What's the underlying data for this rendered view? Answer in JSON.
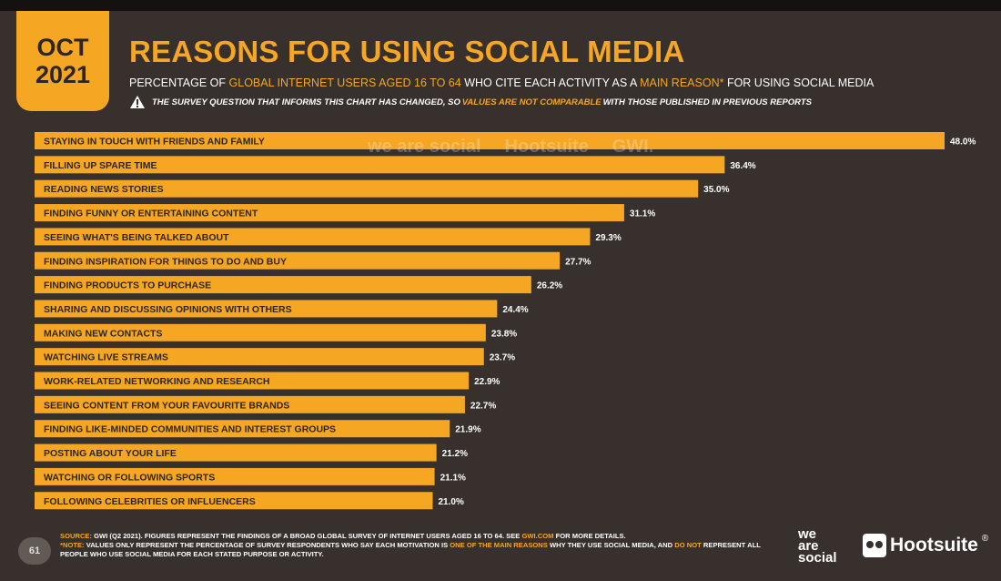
{
  "badge": {
    "month": "OCT",
    "year": "2021"
  },
  "title": "REASONS FOR USING SOCIAL MEDIA",
  "subtitle": {
    "part1": "PERCENTAGE OF ",
    "highlight1": "GLOBAL INTERNET USERS AGED 16 TO 64",
    "part2": " WHO CITE EACH ACTIVITY AS A ",
    "highlight2": "MAIN REASON*",
    "part3": " FOR USING SOCIAL MEDIA"
  },
  "warning": {
    "part1": "THE SURVEY QUESTION THAT INFORMS THIS CHART HAS CHANGED, SO ",
    "highlight": "VALUES ARE NOT COMPARABLE",
    "part2": " WITH THOSE PUBLISHED IN PREVIOUS REPORTS"
  },
  "watermark": {
    "was": "we are social",
    "hootsuite": "Hootsuite",
    "gwi": "GWI."
  },
  "chart_data": {
    "type": "bar",
    "orientation": "horizontal",
    "categories": [
      "STAYING IN TOUCH WITH FRIENDS AND FAMILY",
      "FILLING UP SPARE TIME",
      "READING NEWS STORIES",
      "FINDING FUNNY OR ENTERTAINING CONTENT",
      "SEEING WHAT'S BEING TALKED ABOUT",
      "FINDING INSPIRATION FOR THINGS TO DO AND BUY",
      "FINDING PRODUCTS TO PURCHASE",
      "SHARING AND DISCUSSING OPINIONS WITH OTHERS",
      "MAKING NEW CONTACTS",
      "WATCHING LIVE STREAMS",
      "WORK-RELATED NETWORKING AND RESEARCH",
      "SEEING CONTENT FROM YOUR FAVOURITE BRANDS",
      "FINDING LIKE-MINDED COMMUNITIES AND INTEREST GROUPS",
      "POSTING ABOUT YOUR LIFE",
      "WATCHING OR FOLLOWING SPORTS",
      "FOLLOWING CELEBRITIES OR INFLUENCERS"
    ],
    "values": [
      48.0,
      36.4,
      35.0,
      31.1,
      29.3,
      27.7,
      26.2,
      24.4,
      23.8,
      23.7,
      22.9,
      22.7,
      21.9,
      21.2,
      21.1,
      21.0
    ],
    "value_labels": [
      "48.0%",
      "36.4%",
      "35.0%",
      "31.1%",
      "29.3%",
      "27.7%",
      "26.2%",
      "24.4%",
      "23.8%",
      "23.7%",
      "22.9%",
      "22.7%",
      "21.9%",
      "21.2%",
      "21.1%",
      "21.0%"
    ],
    "unit": "%",
    "bar_color": "#f5a623",
    "grid": false
  },
  "footer": {
    "page_number": "61",
    "source_key": "SOURCE:",
    "source_text": " GWI (Q2 2021). FIGURES REPRESENT THE FINDINGS OF A BROAD GLOBAL SURVEY OF INTERNET USERS AGED 16 TO 64. SEE ",
    "source_link": "GWI.COM",
    "source_end": " FOR MORE DETAILS.",
    "note_key": "*NOTE:",
    "note_text1": " VALUES ONLY REPRESENT THE PERCENTAGE OF SURVEY RESPONDENTS WHO SAY EACH MOTIVATION IS ",
    "note_hl1": "ONE OF THE MAIN REASONS",
    "note_text2": " WHY THEY USE SOCIAL MEDIA, AND ",
    "note_hl2": "DO NOT",
    "note_text3": " REPRESENT ALL PEOPLE WHO USE SOCIAL MEDIA FOR EACH STATED PURPOSE OR ACTIVITY."
  },
  "logos": {
    "was_line1": "we",
    "was_line2": "are",
    "was_line3": "social",
    "hootsuite": "Hootsuite",
    "hootsuite_mark": "®"
  },
  "colors": {
    "accent": "#f5a623",
    "background": "#37302c",
    "text": "#ffffff"
  }
}
